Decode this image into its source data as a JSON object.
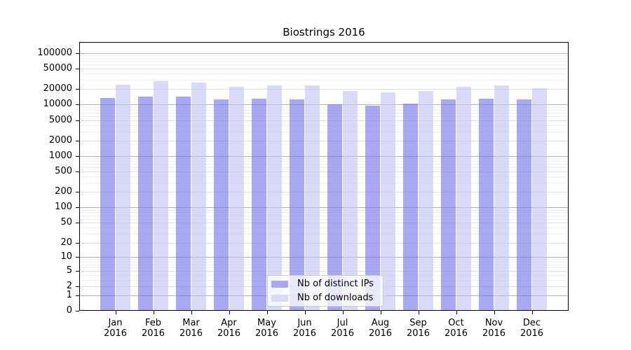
{
  "title": "Biostrings 2016",
  "y_axis": {
    "ticks": [
      {
        "label": "100000",
        "value": 100000
      },
      {
        "label": "50000",
        "value": 50000
      },
      {
        "label": "20000",
        "value": 20000
      },
      {
        "label": "10000",
        "value": 10000
      },
      {
        "label": "5000",
        "value": 5000
      },
      {
        "label": "2000",
        "value": 2000
      },
      {
        "label": "1000",
        "value": 1000
      },
      {
        "label": "500",
        "value": 500
      },
      {
        "label": "200",
        "value": 200
      },
      {
        "label": "100",
        "value": 100
      },
      {
        "label": "50",
        "value": 50
      },
      {
        "label": "20",
        "value": 20
      },
      {
        "label": "10",
        "value": 10
      },
      {
        "label": "5",
        "value": 5
      },
      {
        "label": "2",
        "value": 2
      },
      {
        "label": "1",
        "value": 1
      },
      {
        "label": "0",
        "value": 0
      }
    ]
  },
  "x_axis": {
    "months": [
      "Jan",
      "Feb",
      "Mar",
      "Apr",
      "May",
      "Jun",
      "Jul",
      "Aug",
      "Sep",
      "Oct",
      "Nov",
      "Dec"
    ],
    "year": "2016"
  },
  "legend": {
    "items": [
      {
        "label": "Nb of distinct IPs",
        "series": "ips"
      },
      {
        "label": "Nb of downloads",
        "series": "downloads"
      }
    ]
  },
  "colors": {
    "ips": "#a9a9f3",
    "downloads": "#d9d9f8",
    "ips_fill": "rgba(116,116,236,0.62)",
    "downloads_fill": "rgba(194,194,244,0.62)",
    "grid_major": "#b3b3b3",
    "grid_mid": "#e0e0e0",
    "grid_minor": "#eeeeee",
    "axis": "#000000",
    "legend_border": "#cccccc"
  },
  "chart_data": {
    "type": "bar",
    "title": "Biostrings 2016",
    "categories": [
      "Jan 2016",
      "Feb 2016",
      "Mar 2016",
      "Apr 2016",
      "May 2016",
      "Jun 2016",
      "Jul 2016",
      "Aug 2016",
      "Sep 2016",
      "Oct 2016",
      "Nov 2016",
      "Dec 2016"
    ],
    "series": [
      {
        "name": "Nb of distinct IPs",
        "key": "ips",
        "values": [
          13300,
          14100,
          14200,
          12500,
          12900,
          12700,
          10000,
          9500,
          10400,
          12600,
          12900,
          12500
        ]
      },
      {
        "name": "Nb of downloads",
        "key": "downloads",
        "values": [
          24000,
          28100,
          26700,
          22300,
          23700,
          23300,
          18500,
          17400,
          18100,
          22100,
          23300,
          20900
        ]
      }
    ],
    "yscale": "log10(value+1)",
    "y_tick_values": [
      0,
      1,
      2,
      5,
      10,
      20,
      50,
      100,
      200,
      500,
      1000,
      2000,
      5000,
      10000,
      20000,
      50000,
      100000
    ],
    "ylim": [
      0,
      163000
    ],
    "grid": true,
    "legend_position": "lower center"
  }
}
